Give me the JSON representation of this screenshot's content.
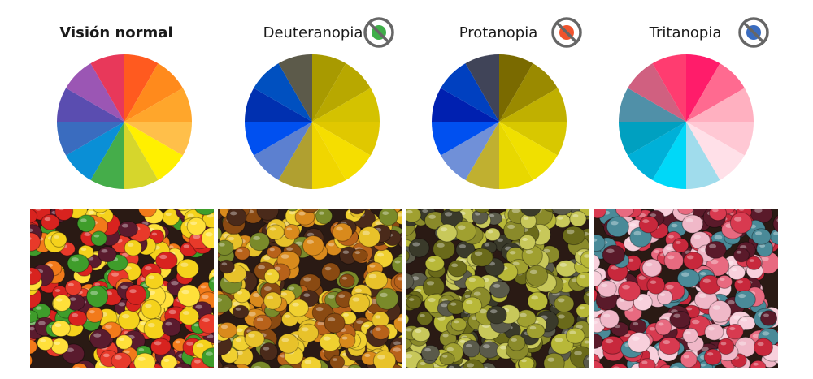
{
  "panels": [
    {
      "label": "Visión normal"
    },
    {
      "label": "Deuteranopia"
    },
    {
      "label": "Protanopia"
    },
    {
      "label": "Tritanopia"
    }
  ]
}
